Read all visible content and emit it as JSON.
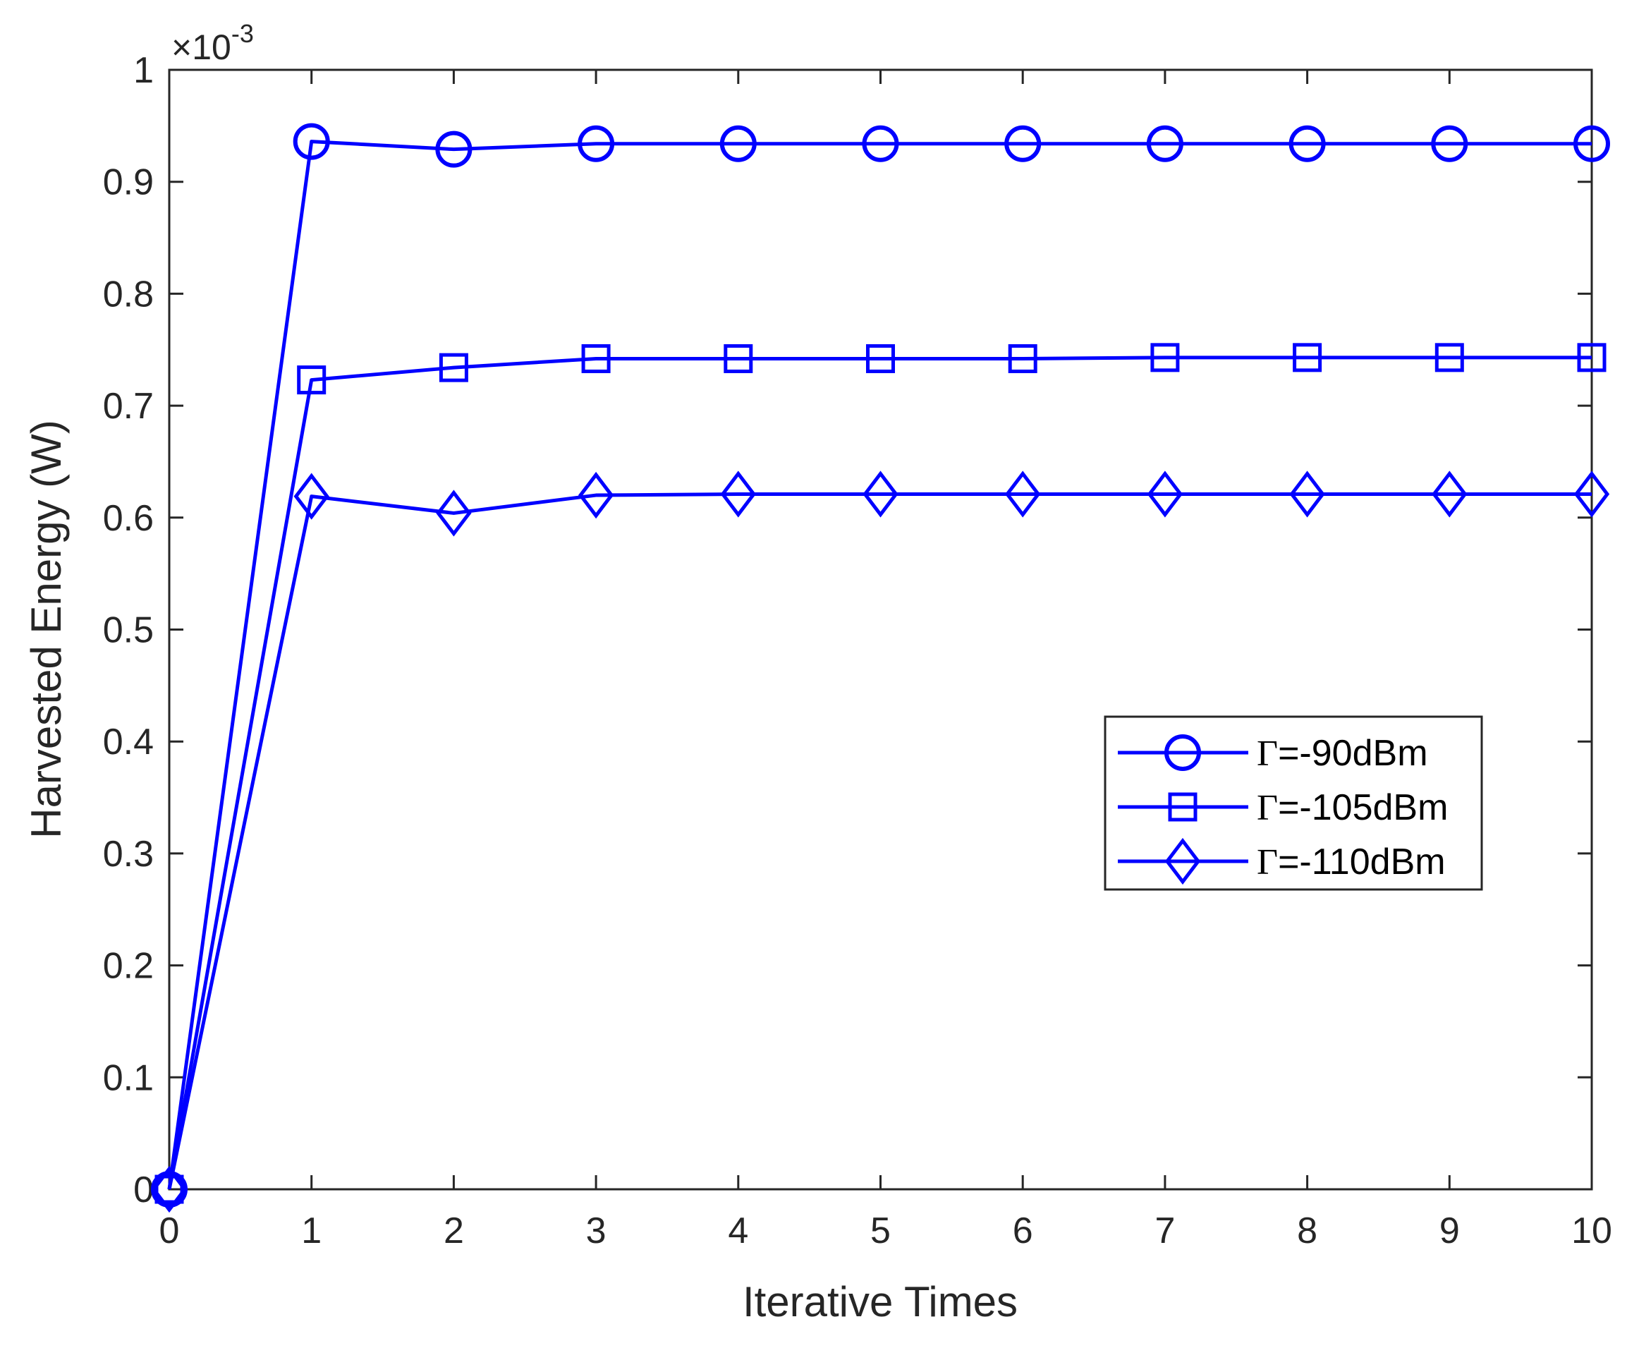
{
  "chart_data": {
    "type": "line",
    "xlabel": "Iterative Times",
    "ylabel": "Harvested Energy (W)",
    "xlim": [
      0,
      10
    ],
    "ylim": [
      0,
      1
    ],
    "y_multiplier": {
      "base": "×10",
      "exponent": "-3"
    },
    "x_ticks": [
      0,
      1,
      2,
      3,
      4,
      5,
      6,
      7,
      8,
      9,
      10
    ],
    "x_tick_labels": [
      "0",
      "1",
      "2",
      "3",
      "4",
      "5",
      "6",
      "7",
      "8",
      "9",
      "10"
    ],
    "y_ticks": [
      0,
      0.1,
      0.2,
      0.3,
      0.4,
      0.5,
      0.6,
      0.7,
      0.8,
      0.9,
      1
    ],
    "y_tick_labels": [
      "0",
      "0.1",
      "0.2",
      "0.3",
      "0.4",
      "0.5",
      "0.6",
      "0.7",
      "0.8",
      "0.9",
      "1"
    ],
    "grid": false,
    "legend_position": "center-right",
    "x": [
      0,
      1,
      2,
      3,
      4,
      5,
      6,
      7,
      8,
      9,
      10
    ],
    "series": [
      {
        "name": "Γ=-90dBm",
        "symbol": "Γ",
        "suffix": "=-90dBm",
        "marker": "circle",
        "color": "#0000ff",
        "values": [
          0,
          0.936,
          0.929,
          0.934,
          0.934,
          0.934,
          0.934,
          0.934,
          0.934,
          0.934,
          0.934
        ]
      },
      {
        "name": "Γ=-105dBm",
        "symbol": "Γ",
        "suffix": "=-105dBm",
        "marker": "square",
        "color": "#0000ff",
        "values": [
          0,
          0.723,
          0.734,
          0.742,
          0.742,
          0.742,
          0.742,
          0.743,
          0.743,
          0.743,
          0.743
        ]
      },
      {
        "name": "Γ=-110dBm",
        "symbol": "Γ",
        "suffix": "=-110dBm",
        "marker": "diamond",
        "color": "#0000ff",
        "values": [
          0,
          0.619,
          0.604,
          0.62,
          0.621,
          0.621,
          0.621,
          0.621,
          0.621,
          0.621,
          0.621
        ]
      }
    ]
  }
}
